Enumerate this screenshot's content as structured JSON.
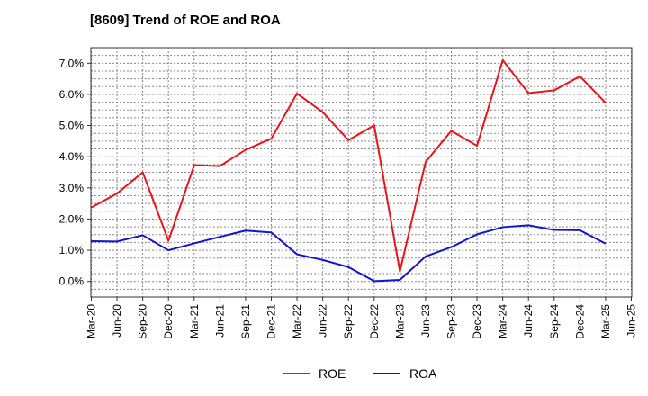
{
  "chart_data": {
    "type": "line",
    "title": "[8609]  Trend of ROE and ROA",
    "categories": [
      "Mar-20",
      "Jun-20",
      "Sep-20",
      "Dec-20",
      "Mar-21",
      "Jun-21",
      "Sep-21",
      "Dec-21",
      "Mar-22",
      "Jun-22",
      "Sep-22",
      "Dec-22",
      "Mar-23",
      "Jun-23",
      "Sep-23",
      "Dec-23",
      "Mar-24",
      "Jun-24",
      "Sep-24",
      "Dec-24",
      "Mar-25",
      "Jun-25"
    ],
    "series": [
      {
        "name": "ROE",
        "color": "#e8141b",
        "values": [
          2.37,
          2.82,
          3.5,
          1.3,
          3.73,
          3.7,
          4.22,
          4.58,
          6.03,
          5.43,
          4.53,
          5.01,
          0.32,
          3.83,
          4.83,
          4.35,
          7.1,
          6.04,
          6.13,
          6.58,
          5.73,
          null
        ]
      },
      {
        "name": "ROA",
        "color": "#1414cc",
        "values": [
          1.29,
          1.28,
          1.48,
          1.0,
          1.22,
          1.43,
          1.63,
          1.57,
          0.87,
          0.69,
          0.46,
          0.01,
          0.05,
          0.8,
          1.1,
          1.51,
          1.74,
          1.8,
          1.65,
          1.64,
          1.21,
          null
        ]
      }
    ],
    "yticks": [
      "0.0%",
      "1.0%",
      "2.0%",
      "3.0%",
      "4.0%",
      "5.0%",
      "6.0%",
      "7.0%"
    ],
    "ylim": [
      -0.5,
      7.5
    ],
    "grid": true,
    "legend": "bottom-center"
  }
}
